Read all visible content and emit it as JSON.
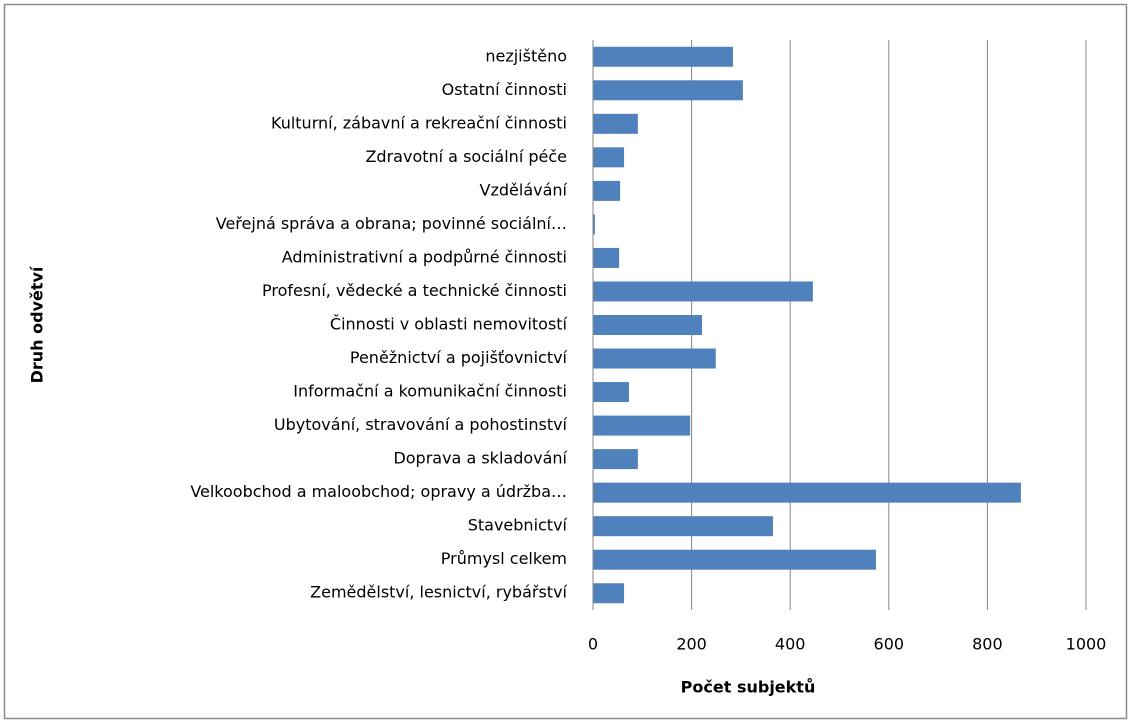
{
  "chart_data": {
    "type": "bar",
    "orientation": "horizontal",
    "x_label": "Počet subjektů",
    "y_label": "Druh odvětví",
    "categories": [
      "nezjištěno",
      "Ostatní činnosti",
      "Kulturní, zábavní a rekreační činnosti",
      "Zdravotní a sociální péče",
      "Vzdělávání",
      "Veřejná správa a obrana; povinné sociální…",
      "Administrativní a podpůrné činnosti",
      "Profesní, vědecké a technické činnosti",
      "Činnosti v oblasti nemovitostí",
      "Peněžnictví a pojišťovnictví",
      "Informační a komunikační činnosti",
      "Ubytování, stravování a pohostinství",
      "Doprava a skladování",
      "Velkoobchod a maloobchod; opravy a údržba…",
      "Stavebnictví",
      "Průmysl celkem",
      "Zemědělství, lesnictví, rybářství"
    ],
    "values": [
      284,
      304,
      91,
      63,
      55,
      4,
      53,
      446,
      221,
      249,
      73,
      197,
      91,
      868,
      365,
      574,
      63
    ],
    "color": "#4f81bd",
    "xlim": [
      0,
      1000
    ],
    "xticks": [
      0,
      200,
      400,
      600,
      800,
      1000
    ],
    "grid": true
  }
}
